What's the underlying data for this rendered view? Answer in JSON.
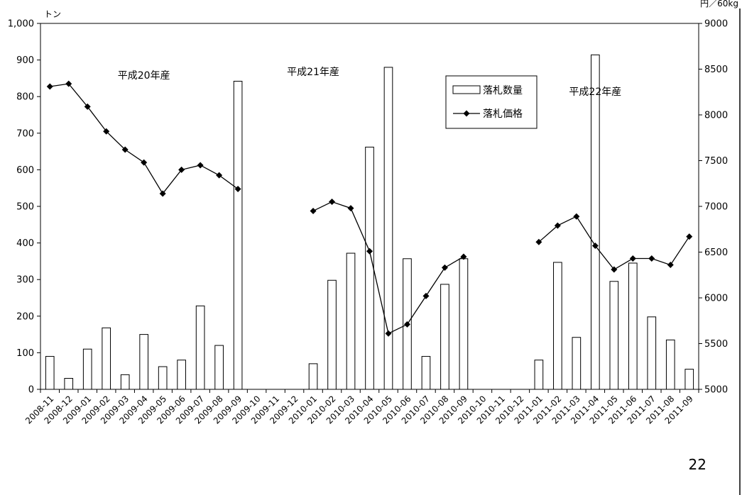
{
  "page_number": "22",
  "chart_data": {
    "type": "bar",
    "categories": [
      "2008-11",
      "2008-12",
      "2009-01",
      "2009-02",
      "2009-03",
      "2009-04",
      "2009-05",
      "2009-06",
      "2009-07",
      "2009-08",
      "2009-09",
      "2009-10",
      "2009-11",
      "2009-12",
      "2010-01",
      "2010-02",
      "2010-03",
      "2010-04",
      "2010-05",
      "2010-06",
      "2010-07",
      "2010-08",
      "2010-09",
      "2010-10",
      "2010-11",
      "2010-12",
      "2011-01",
      "2011-02",
      "2011-03",
      "2011-04",
      "2011-05",
      "2011-06",
      "2011-07",
      "2011-08",
      "2011-09"
    ],
    "series": [
      {
        "name": "落札数量",
        "kind": "bar",
        "axis": "left",
        "values": [
          90,
          30,
          110,
          168,
          40,
          150,
          62,
          80,
          228,
          120,
          842,
          null,
          null,
          null,
          70,
          298,
          372,
          662,
          880,
          357,
          90,
          287,
          357,
          null,
          null,
          null,
          80,
          347,
          142,
          914,
          295,
          345,
          198,
          135,
          55
        ]
      },
      {
        "name": "落札価格",
        "kind": "line",
        "axis": "right",
        "values": [
          8310,
          8340,
          8090,
          7820,
          7620,
          7480,
          7140,
          7400,
          7450,
          7340,
          7190,
          null,
          null,
          null,
          6950,
          7050,
          6980,
          6510,
          5610,
          5710,
          6020,
          6330,
          6450,
          null,
          null,
          null,
          6610,
          6790,
          6890,
          6570,
          6310,
          6430,
          6430,
          6360,
          6670
        ]
      }
    ],
    "y_left": {
      "unit": "トン",
      "ticks": [
        "0",
        "100",
        "200",
        "300",
        "400",
        "500",
        "600",
        "700",
        "800",
        "900",
        "1,000"
      ],
      "ylim": [
        0,
        1000
      ]
    },
    "y_right": {
      "unit": "円／60kg",
      "ticks": [
        "5000",
        "5500",
        "6000",
        "6500",
        "7000",
        "7500",
        "8000",
        "8500",
        "9000"
      ],
      "ylim": [
        5000,
        9000
      ]
    },
    "annotations": [
      {
        "text": "平成20年産",
        "at": "2009-04"
      },
      {
        "text": "平成21年産",
        "at": "2010-01"
      },
      {
        "text": "平成22年産",
        "at": "2011-04"
      }
    ],
    "legend_position": "top-right",
    "grid": false,
    "colors": {
      "bar_fill": "#ffffff",
      "bar_stroke": "#000000",
      "line": "#000000"
    }
  }
}
